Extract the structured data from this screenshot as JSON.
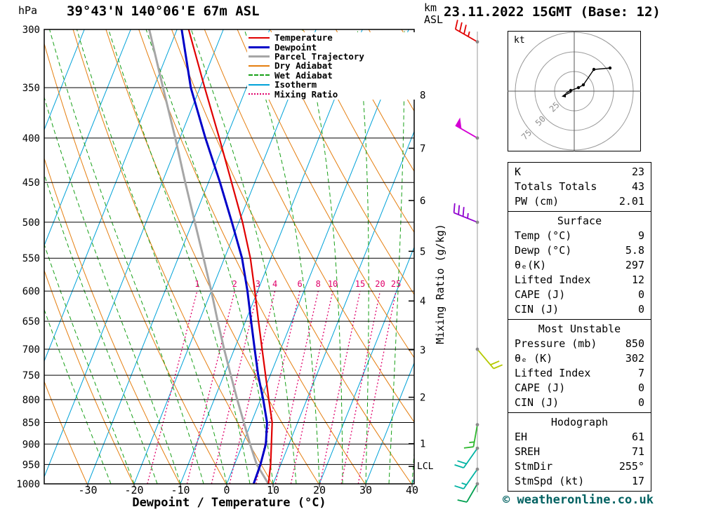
{
  "header": {
    "pressure_unit": "hPa",
    "title": "39°43'N 140°06'E 67m ASL",
    "altitude_unit_line1": "km",
    "altitude_unit_line2": "ASL",
    "datetime": "23.11.2022 15GMT (Base: 12)"
  },
  "legend": {
    "items": [
      {
        "label": "Temperature",
        "color": "#e00000",
        "style": "solid",
        "width": 2
      },
      {
        "label": "Dewpoint",
        "color": "#0000c8",
        "style": "solid",
        "width": 3
      },
      {
        "label": "Parcel Trajectory",
        "color": "#a6a6a6",
        "style": "solid",
        "width": 3
      },
      {
        "label": "Dry Adiabat",
        "color": "#e57e0f",
        "style": "solid",
        "width": 2
      },
      {
        "label": "Wet Adiabat",
        "color": "#18a018",
        "style": "dashed",
        "width": 2
      },
      {
        "label": "Isotherm",
        "color": "#00a2d8",
        "style": "solid",
        "width": 2
      },
      {
        "label": "Mixing Ratio",
        "color": "#e0006a",
        "style": "dotted",
        "width": 2
      }
    ]
  },
  "chart_data": {
    "type": "line",
    "subtype": "skewt_log_p",
    "title": "39°43'N 140°06'E 67m ASL",
    "x_axis": {
      "label": "Dewpoint / Temperature (°C)",
      "ticks": [
        -30,
        -20,
        -10,
        0,
        10,
        20,
        30,
        40
      ]
    },
    "y_axis": {
      "label": "hPa",
      "scale": "log",
      "range": [
        300,
        1000
      ],
      "ticks": [
        300,
        350,
        400,
        450,
        500,
        550,
        600,
        650,
        700,
        750,
        800,
        850,
        900,
        950,
        1000
      ]
    },
    "km_axis": {
      "ticks": [
        {
          "km": 8,
          "p": 357
        },
        {
          "km": 7,
          "p": 411
        },
        {
          "km": 6,
          "p": 472
        },
        {
          "km": 5,
          "p": 540
        },
        {
          "km": 4,
          "p": 616
        },
        {
          "km": 3,
          "p": 701
        },
        {
          "km": 2,
          "p": 795
        },
        {
          "km": 1,
          "p": 899
        }
      ],
      "lcl_label": "LCL",
      "lcl_pressure": 955
    },
    "mixing_ratio_axis_label": "Mixing Ratio (g/kg)",
    "mixing_ratio_lines_g_per_kg": [
      1,
      2,
      3,
      4,
      6,
      8,
      10,
      15,
      20,
      25
    ],
    "pressure_hPa": [
      1000,
      950,
      900,
      850,
      800,
      750,
      700,
      650,
      600,
      550,
      500,
      450,
      400,
      350,
      300
    ],
    "series": [
      {
        "name": "Temperature",
        "color": "#e00000",
        "width": 2.2,
        "values_C": [
          9,
          7.8,
          6.2,
          4.5,
          1.8,
          -1,
          -4,
          -7.2,
          -10.6,
          -14.4,
          -19.2,
          -25,
          -31.5,
          -39,
          -47.5
        ]
      },
      {
        "name": "Dewpoint",
        "color": "#0000c8",
        "width": 3,
        "values_C": [
          5.8,
          5.6,
          5,
          3.4,
          0.6,
          -2.6,
          -5.6,
          -8.8,
          -12.2,
          -16.2,
          -21.5,
          -27.5,
          -34.5,
          -42,
          -49
        ]
      },
      {
        "name": "Parcel Trajectory",
        "color": "#a6a6a6",
        "width": 3,
        "values_C": [
          9,
          4.8,
          1.6,
          -1.6,
          -5,
          -8.5,
          -12.2,
          -16,
          -20,
          -24.5,
          -29.5,
          -35,
          -41,
          -48,
          -56
        ]
      }
    ],
    "wind_barbs": [
      {
        "pressure": 310,
        "color": "#e10000",
        "pennant": 0,
        "full": 3,
        "half": 1,
        "angle": -60
      },
      {
        "pressure": 400,
        "color": "#d400d4",
        "pennant": 1,
        "full": 0,
        "half": 0,
        "angle": -60
      },
      {
        "pressure": 500,
        "color": "#8f00cf",
        "pennant": 0,
        "full": 3,
        "half": 1,
        "angle": -68
      },
      {
        "pressure": 700,
        "color": "#b5c900",
        "pennant": 0,
        "full": 2,
        "half": 0,
        "angle": 140,
        "flip": true
      },
      {
        "pressure": 855,
        "color": "#2eb82e",
        "pennant": 0,
        "full": 1,
        "half": 1,
        "angle": -170,
        "len": 32
      },
      {
        "pressure": 910,
        "color": "#00b3a3",
        "pennant": 0,
        "full": 2,
        "half": 0,
        "angle": -145,
        "len": 34
      },
      {
        "pressure": 962,
        "color": "#00b3a3",
        "pennant": 0,
        "full": 1,
        "half": 1,
        "angle": -145,
        "len": 34
      },
      {
        "pressure": 1000,
        "color": "#00a050",
        "pennant": 0,
        "full": 1,
        "half": 0,
        "angle": -150,
        "len": 30
      }
    ]
  },
  "hodograph": {
    "unit": "kt",
    "rings": [
      25,
      50,
      75
    ],
    "trace": [
      {
        "x": -12,
        "y": 3,
        "dot": false
      },
      {
        "x": -5,
        "y": -1,
        "dot": true
      },
      {
        "x": 6,
        "y": -5,
        "dot": true
      },
      {
        "x": 13,
        "y": -9,
        "dot": true
      },
      {
        "x": 28,
        "y": -31,
        "dot": true
      },
      {
        "x": 51,
        "y": -33,
        "dot": true
      }
    ]
  },
  "table": {
    "sections": [
      {
        "header": null,
        "rows": [
          [
            "K",
            "23"
          ],
          [
            "Totals Totals",
            "43"
          ],
          [
            "PW (cm)",
            "2.01"
          ]
        ]
      },
      {
        "header": "Surface",
        "rows": [
          [
            "Temp (°C)",
            "9"
          ],
          [
            "Dewp (°C)",
            "5.8"
          ],
          [
            "θₑ(K)",
            "297"
          ],
          [
            "Lifted Index",
            "12"
          ],
          [
            "CAPE (J)",
            "0"
          ],
          [
            "CIN (J)",
            "0"
          ]
        ]
      },
      {
        "header": "Most Unstable",
        "rows": [
          [
            "Pressure (mb)",
            "850"
          ],
          [
            "θₑ (K)",
            "302"
          ],
          [
            "Lifted Index",
            "7"
          ],
          [
            "CAPE (J)",
            "0"
          ],
          [
            "CIN (J)",
            "0"
          ]
        ]
      },
      {
        "header": "Hodograph",
        "rows": [
          [
            "EH",
            "61"
          ],
          [
            "SREH",
            "71"
          ],
          [
            "StmDir",
            "255°"
          ],
          [
            "StmSpd (kt)",
            "17"
          ]
        ]
      }
    ]
  },
  "footer": {
    "copyright": "© weatheronline.co.uk"
  }
}
